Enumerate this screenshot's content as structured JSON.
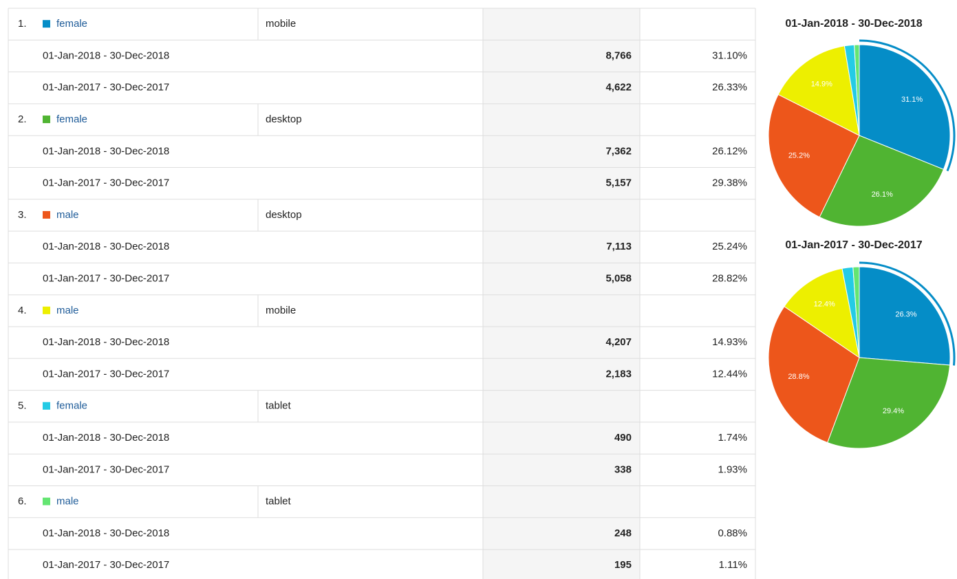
{
  "table": {
    "groups": [
      {
        "index": "1.",
        "gender": "female",
        "color": "#058dc7",
        "device": "mobile",
        "rows": [
          {
            "period": "01-Jan-2018 - 30-Dec-2018",
            "sessions": "8,766",
            "percent": "31.10%"
          },
          {
            "period": "01-Jan-2017 - 30-Dec-2017",
            "sessions": "4,622",
            "percent": "26.33%"
          }
        ]
      },
      {
        "index": "2.",
        "gender": "female",
        "color": "#50b432",
        "device": "desktop",
        "rows": [
          {
            "period": "01-Jan-2018 - 30-Dec-2018",
            "sessions": "7,362",
            "percent": "26.12%"
          },
          {
            "period": "01-Jan-2017 - 30-Dec-2017",
            "sessions": "5,157",
            "percent": "29.38%"
          }
        ]
      },
      {
        "index": "3.",
        "gender": "male",
        "color": "#ed561b",
        "device": "desktop",
        "rows": [
          {
            "period": "01-Jan-2018 - 30-Dec-2018",
            "sessions": "7,113",
            "percent": "25.24%"
          },
          {
            "period": "01-Jan-2017 - 30-Dec-2017",
            "sessions": "5,058",
            "percent": "28.82%"
          }
        ]
      },
      {
        "index": "4.",
        "gender": "male",
        "color": "#edef00",
        "device": "mobile",
        "rows": [
          {
            "period": "01-Jan-2018 - 30-Dec-2018",
            "sessions": "4,207",
            "percent": "14.93%"
          },
          {
            "period": "01-Jan-2017 - 30-Dec-2017",
            "sessions": "2,183",
            "percent": "12.44%"
          }
        ]
      },
      {
        "index": "5.",
        "gender": "female",
        "color": "#24cbe5",
        "device": "tablet",
        "rows": [
          {
            "period": "01-Jan-2018 - 30-Dec-2018",
            "sessions": "490",
            "percent": "1.74%"
          },
          {
            "period": "01-Jan-2017 - 30-Dec-2017",
            "sessions": "338",
            "percent": "1.93%"
          }
        ]
      },
      {
        "index": "6.",
        "gender": "male",
        "color": "#64e572",
        "device": "tablet",
        "rows": [
          {
            "period": "01-Jan-2018 - 30-Dec-2018",
            "sessions": "248",
            "percent": "0.88%"
          },
          {
            "period": "01-Jan-2017 - 30-Dec-2017",
            "sessions": "195",
            "percent": "1.11%"
          }
        ]
      }
    ]
  },
  "chart_data": [
    {
      "type": "pie",
      "title": "01-Jan-2018 - 30-Dec-2018",
      "values": [
        31.1,
        26.12,
        25.24,
        14.93,
        1.74,
        0.88
      ],
      "value_labels": [
        "31.1%",
        "26.1%",
        "25.2%",
        "14.9%",
        null,
        null
      ],
      "colors": [
        "#058dc7",
        "#50b432",
        "#ed561b",
        "#edef00",
        "#24cbe5",
        "#64e572"
      ]
    },
    {
      "type": "pie",
      "title": "01-Jan-2017 - 30-Dec-2017",
      "values": [
        26.33,
        29.38,
        28.82,
        12.44,
        1.93,
        1.11
      ],
      "value_labels": [
        "26.3%",
        "29.4%",
        "28.8%",
        "12.4%",
        null,
        null
      ],
      "colors": [
        "#058dc7",
        "#50b432",
        "#ed561b",
        "#edef00",
        "#24cbe5",
        "#64e572"
      ]
    }
  ]
}
